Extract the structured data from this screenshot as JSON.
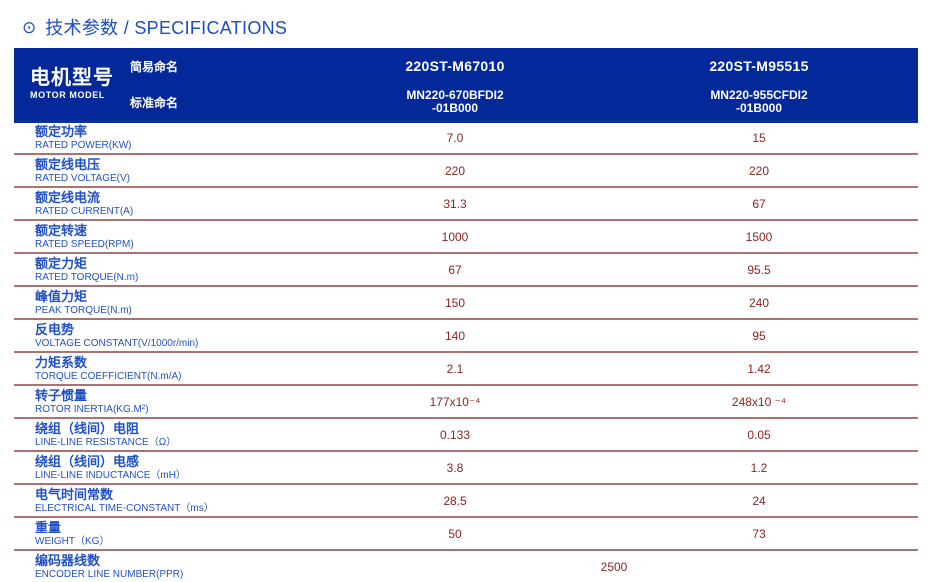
{
  "page": {
    "bullet": "⊙",
    "title": "技术参数 / SPECIFICATIONS"
  },
  "colors": {
    "header_bg": "#03289a",
    "title_blue": "#1d4dc5",
    "label_blue": "#2251c5",
    "value_red": "#8e2320",
    "row_divider": "#ab7272",
    "header_divider": "#0a2f9e"
  },
  "table": {
    "header": {
      "row_title_zh": "电机型号",
      "row_title_en": "MOTOR MODEL",
      "simple_name_label": "简易命名",
      "standard_name_label": "标准命名",
      "columns": [
        {
          "simple_name": "220ST-M67010",
          "standard_name_line1": "MN220-670BFDI2",
          "standard_name_line2": "-01B000"
        },
        {
          "simple_name": "220ST-M95515",
          "standard_name_line1": "MN220-955CFDI2",
          "standard_name_line2": "-01B000"
        }
      ]
    },
    "rows": [
      {
        "zh": "额定功率",
        "en": "RATED POWER(KW)",
        "col1": "7.0",
        "col2": "15"
      },
      {
        "zh": "额定线电压",
        "en": "RATED VOLTAGE(V)",
        "col1": "220",
        "col2": "220"
      },
      {
        "zh": "额定线电流",
        "en": "RATED CURRENT(A)",
        "col1": "31.3",
        "col2": "67"
      },
      {
        "zh": "额定转速",
        "en": "RATED SPEED(RPM)",
        "col1": "1000",
        "col2": "1500"
      },
      {
        "zh": "额定力矩",
        "en": "RATED TORQUE(N.m)",
        "col1": "67",
        "col2": "95.5"
      },
      {
        "zh": "峰值力矩",
        "en": "PEAK TORQUE(N.m)",
        "col1": "150",
        "col2": "240"
      },
      {
        "zh": "反电势",
        "en": "VOLTAGE CONSTANT(V/1000r/min)",
        "col1": "140",
        "col2": "95"
      },
      {
        "zh": "力矩系数",
        "en": "TORQUE COEFFICIENT(N.m/A)",
        "col1": "2.1",
        "col2": "1.42"
      },
      {
        "zh": "转子惯量",
        "en": "ROTOR INERTIA(KG.M²)",
        "col1": "177x10⁻⁴",
        "col2": "248x10 ⁻⁴"
      },
      {
        "zh": "绕组（线间）电阻",
        "en": "LINE-LINE RESISTANCE（Ω）",
        "col1": "0.133",
        "col2": "0.05"
      },
      {
        "zh": "绕组（线间）电感",
        "en": "LINE-LINE INDUCTANCE（mH）",
        "col1": "3.8",
        "col2": "1.2"
      },
      {
        "zh": "电气时间常数",
        "en": "ELECTRICAL TIME-CONSTANT（ms）",
        "col1": "28.5",
        "col2": "24"
      },
      {
        "zh": "重量",
        "en": "WEIGHT（KG）",
        "col1": "50",
        "col2": "73"
      }
    ],
    "span_row": {
      "zh": "编码器线数",
      "en": "ENCODER LINE NUMBER(PPR)",
      "value": "2500"
    }
  }
}
